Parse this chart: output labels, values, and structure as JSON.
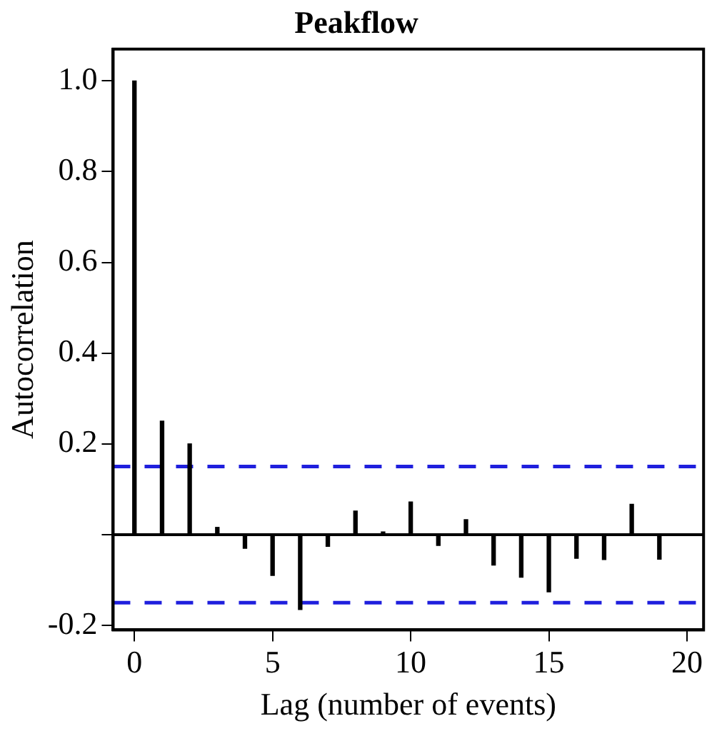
{
  "chart_data": {
    "type": "bar",
    "title": "Peakflow",
    "xlabel": "Lag (number of events)",
    "ylabel": "Autocorrelation",
    "x": [
      0,
      1,
      2,
      3,
      4,
      5,
      6,
      7,
      8,
      9,
      10,
      11,
      12,
      13,
      14,
      15,
      16,
      17,
      18,
      19
    ],
    "series": [
      {
        "color": "#000000",
        "values": [
          1.0,
          0.25,
          0.2,
          0.016,
          -0.03,
          -0.09,
          -0.165,
          -0.026,
          0.052,
          0.006,
          0.072,
          -0.024,
          0.033,
          -0.067,
          -0.094,
          -0.126,
          -0.052,
          -0.055,
          0.067,
          -0.054
        ]
      }
    ],
    "xlim": [
      -0.77,
      20.6
    ],
    "xticks": [
      0,
      5,
      10,
      15,
      20
    ],
    "ylim": [
      -0.21,
      1.07
    ],
    "yticks": [
      -0.2,
      {
        "value": 0,
        "label": null
      },
      0.2,
      0.4,
      0.6,
      0.8,
      {
        "value": 1,
        "label": "1.0"
      }
    ],
    "ref_lines": [
      {
        "axis": "y",
        "value": 0,
        "color": "#000000",
        "line_style": "solid"
      },
      {
        "axis": "y",
        "value": 0.15,
        "color": "#1f1fdd",
        "line_style": "dashed"
      },
      {
        "axis": "y",
        "value": -0.15,
        "color": "#1f1fdd",
        "line_style": "dashed"
      }
    ],
    "grid": false,
    "legend": false
  }
}
